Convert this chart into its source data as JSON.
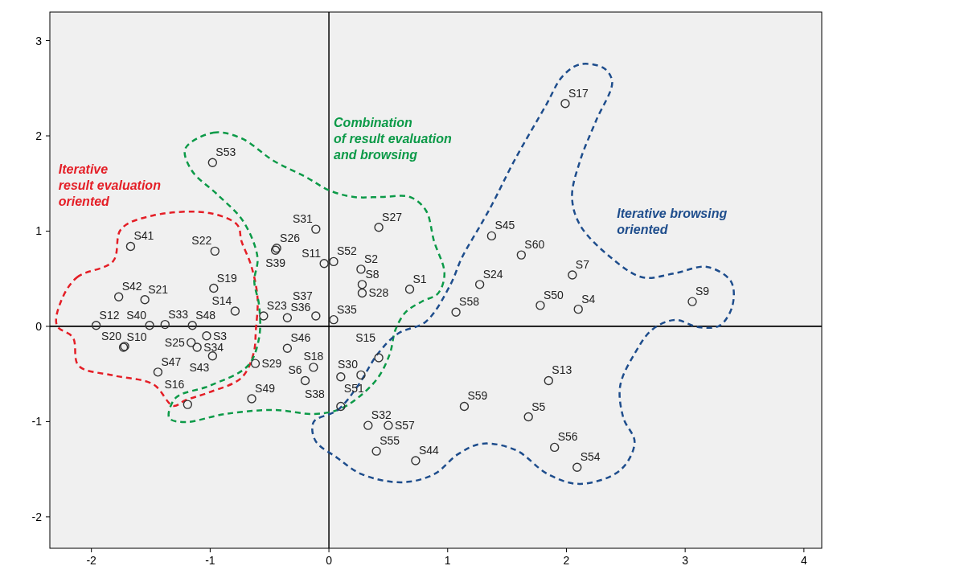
{
  "chart_data": {
    "type": "scatter",
    "marker": "circle",
    "xlim": [
      -2.35,
      4.15
    ],
    "ylim": [
      -2.33,
      3.3
    ],
    "xticks": [
      -2,
      -1,
      0,
      1,
      2,
      3,
      4
    ],
    "yticks": [
      -2,
      -1,
      0,
      1,
      2,
      3
    ],
    "ref_lines": [
      {
        "axis": "x",
        "value": 0,
        "color": "#000000"
      },
      {
        "axis": "y",
        "value": 0,
        "color": "#000000"
      }
    ],
    "series": [
      {
        "color": "#333333",
        "x": [
          0.68,
          0.27,
          -1.03,
          2.1,
          1.68,
          -0.2,
          2.05,
          0.28,
          3.06,
          -1.73,
          -0.04,
          -1.96,
          1.85,
          -0.79,
          0.42,
          -1.19,
          1.99,
          -0.13,
          -0.97,
          -1.72,
          -1.55,
          -0.96,
          -0.55,
          1.27,
          -1.16,
          -0.44,
          0.42,
          0.28,
          -0.62,
          0.27,
          -0.11,
          0.33,
          -1.38,
          -1.11,
          0.04,
          -0.35,
          -0.11,
          0.1,
          -0.45,
          -1.51,
          -1.67,
          -1.77,
          -0.98,
          0.73,
          1.37,
          -0.35,
          -1.44,
          -1.15,
          -0.65,
          1.78,
          0.1,
          0.04,
          -0.98,
          2.09,
          0.4,
          1.9,
          0.5,
          1.07,
          1.14,
          1.62
        ],
        "values": [
          0.39,
          0.6,
          -0.1,
          0.18,
          -0.95,
          -0.57,
          0.54,
          0.44,
          0.26,
          -0.22,
          0.66,
          0.01,
          -0.57,
          0.16,
          -0.33,
          -0.82,
          2.34,
          -0.43,
          0.4,
          -0.21,
          0.28,
          0.79,
          0.11,
          0.44,
          -0.17,
          0.82,
          1.04,
          0.35,
          -0.39,
          -0.51,
          1.02,
          -1.04,
          0.02,
          -0.22,
          0.07,
          0.09,
          0.11,
          -0.84,
          0.8,
          0.01,
          0.84,
          0.31,
          -0.31,
          -1.41,
          0.95,
          -0.23,
          -0.48,
          0.01,
          -0.76,
          0.22,
          -0.53,
          0.68,
          1.72,
          -1.48,
          -1.31,
          -1.27,
          -1.04,
          0.15,
          -0.84,
          0.75
        ],
        "value_labels": [
          "S1",
          "S2",
          "S3",
          "S4",
          "S5",
          "S6",
          "S7",
          "S8",
          "S9",
          "S10",
          "S11",
          "S12",
          "S13",
          "S14",
          "S15",
          "S16",
          "S17",
          "S18",
          "S19",
          "S20",
          "S21",
          "S22",
          "S23",
          "S24",
          "S25",
          "S26",
          "S27",
          "S28",
          "S29",
          "S30",
          "S31",
          "S32",
          "S33",
          "S34",
          "S35",
          "S36",
          "S37",
          "S38",
          "S39",
          "S40",
          "S41",
          "S42",
          "S43",
          "S44",
          "S45",
          "S46",
          "S47",
          "S48",
          "S49",
          "S50",
          "S51",
          "S52",
          "S53",
          "S54",
          "S55",
          "S56",
          "S57",
          "S58",
          "S59",
          "S60"
        ]
      }
    ],
    "annotations": [
      "Iterative\nresult evaluation\noriented",
      "Combination\nof result evaluation\nand browsing",
      "Iterative browsing\noriented"
    ]
  }
}
